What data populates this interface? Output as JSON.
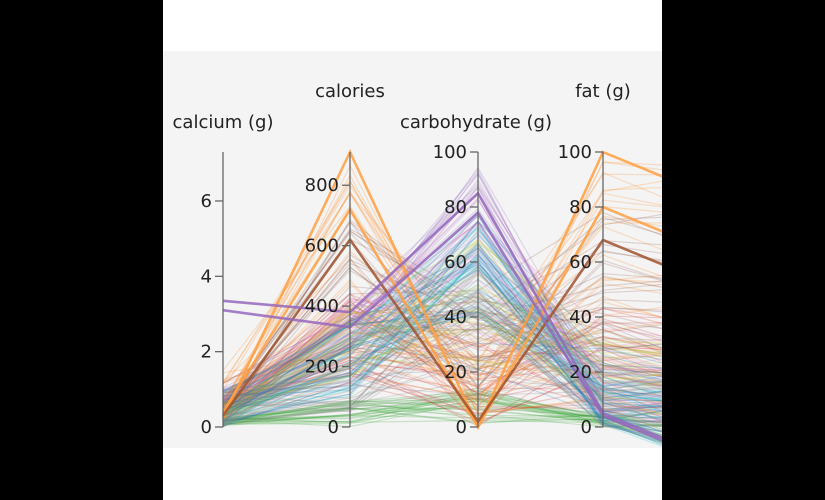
{
  "chart_data": {
    "type": "parallel_coordinates",
    "axes": [
      {
        "key": "calcium",
        "label": "calcium (g)",
        "domain": [
          0,
          7.3
        ],
        "ticks": [
          0,
          2,
          4,
          6
        ]
      },
      {
        "key": "calories",
        "label": "calories",
        "domain": [
          0,
          910
        ],
        "ticks": [
          0,
          200,
          400,
          600,
          800
        ]
      },
      {
        "key": "carbohydrate",
        "label": "carbohydrate (g)",
        "domain": [
          0,
          100
        ],
        "ticks": [
          0,
          20,
          40,
          60,
          80,
          100
        ]
      },
      {
        "key": "fat",
        "label": "fat (g)",
        "domain": [
          0,
          100
        ],
        "ticks": [
          0,
          20,
          40,
          60,
          80,
          100
        ]
      }
    ],
    "color_groups": [
      {
        "color": "#2ca02c",
        "calcium": [
          0.0,
          0.3
        ],
        "calories": [
          0,
          90
        ],
        "carbohydrate": [
          0,
          15
        ],
        "fat": [
          0,
          5
        ]
      },
      {
        "color": "#d62728",
        "calcium": [
          0.0,
          0.8
        ],
        "calories": [
          100,
          450
        ],
        "carbohydrate": [
          0,
          40
        ],
        "fat": [
          5,
          45
        ]
      },
      {
        "color": "#9467bd",
        "calcium": [
          0.0,
          1.2
        ],
        "calories": [
          250,
          400
        ],
        "carbohydrate": [
          60,
          95
        ],
        "fat": [
          0,
          20
        ]
      },
      {
        "color": "#ff7f0e",
        "calcium": [
          0.0,
          1.5
        ],
        "calories": [
          150,
          910
        ],
        "carbohydrate": [
          0,
          30
        ],
        "fat": [
          10,
          100
        ]
      },
      {
        "color": "#8c564b",
        "calcium": [
          0.0,
          0.6
        ],
        "calories": [
          200,
          700
        ],
        "carbohydrate": [
          10,
          50
        ],
        "fat": [
          20,
          80
        ]
      },
      {
        "color": "#e377c2",
        "calcium": [
          0.0,
          0.8
        ],
        "calories": [
          150,
          450
        ],
        "carbohydrate": [
          30,
          90
        ],
        "fat": [
          5,
          40
        ]
      },
      {
        "color": "#17becf",
        "calcium": [
          0.0,
          0.5
        ],
        "calories": [
          100,
          350
        ],
        "carbohydrate": [
          40,
          80
        ],
        "fat": [
          0,
          20
        ]
      },
      {
        "color": "#bcbd22",
        "calcium": [
          0.0,
          0.7
        ],
        "calories": [
          150,
          400
        ],
        "carbohydrate": [
          20,
          70
        ],
        "fat": [
          5,
          35
        ]
      },
      {
        "color": "#7f7f7f",
        "calcium": [
          0.0,
          1.0
        ],
        "calories": [
          50,
          300
        ],
        "carbohydrate": [
          10,
          60
        ],
        "fat": [
          0,
          25
        ]
      },
      {
        "color": "#1f77b4",
        "calcium": [
          0.0,
          1.0
        ],
        "calories": [
          100,
          380
        ],
        "carbohydrate": [
          20,
          75
        ],
        "fat": [
          0,
          30
        ]
      }
    ],
    "highlight_lines": [
      {
        "color": "#ff9f40",
        "calcium": 0.25,
        "calories": 910,
        "carbohydrate": 0,
        "fat": 100
      },
      {
        "color": "#ff9f40",
        "calcium": 0.4,
        "calories": 720,
        "carbohydrate": 0,
        "fat": 80
      },
      {
        "color": "#a0522d",
        "calcium": 0.3,
        "calories": 620,
        "carbohydrate": 2,
        "fat": 68
      },
      {
        "color": "#9467bd",
        "calcium": 3.35,
        "calories": 380,
        "carbohydrate": 85,
        "fat": 5
      },
      {
        "color": "#9467bd",
        "calcium": 3.1,
        "calories": 330,
        "carbohydrate": 78,
        "fat": 4
      }
    ]
  }
}
